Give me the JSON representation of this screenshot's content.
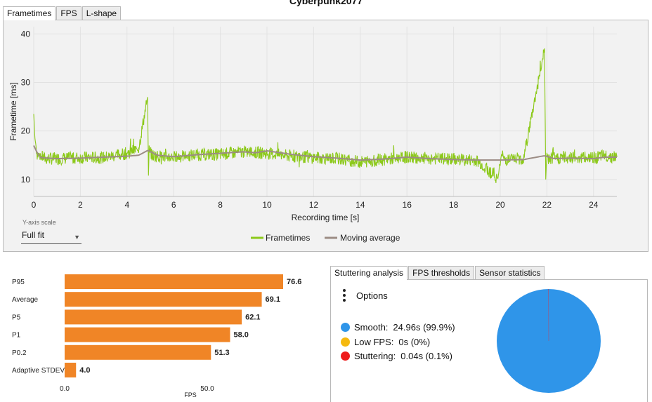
{
  "window": {
    "title": "Cyberpunk2077"
  },
  "top_tabs": [
    {
      "label": "Frametimes",
      "active": true
    },
    {
      "label": "FPS",
      "active": false
    },
    {
      "label": "L-shape",
      "active": false
    }
  ],
  "y_axis_scale": {
    "label": "Y-axis scale",
    "value": "Full fit"
  },
  "colors": {
    "frametimes": "#8cc91a",
    "moving_average": "#9c8c84",
    "bars": "#f08526",
    "smooth": "#2f95e9",
    "low_fps": "#f5b90f",
    "stuttering": "#ee1c1c",
    "panel_bg": "#f2f2f2",
    "grid": "#e2e2e2"
  },
  "chart_data": [
    {
      "type": "line",
      "xlabel": "Recording time [s]",
      "ylabel": "Frametime [ms]",
      "xlim": [
        0,
        25
      ],
      "ylim": [
        6.5,
        41.5
      ],
      "x_ticks": [
        "0",
        "2",
        "4",
        "6",
        "8",
        "10",
        "12",
        "14",
        "16",
        "18",
        "20",
        "22",
        "24"
      ],
      "y_ticks": [
        "10",
        "20",
        "30",
        "40"
      ],
      "grid": true,
      "legend_position": "bottom-center",
      "series": [
        {
          "name": "Frametimes",
          "x": [
            0,
            0.05,
            0.15,
            0.5,
            1,
            2,
            3,
            4,
            4.5,
            4.88,
            4.92,
            4.95,
            4.98,
            5.1,
            6,
            7,
            8,
            9,
            10,
            11,
            12,
            13,
            14,
            15,
            16,
            17,
            18,
            19,
            19.9,
            20.05,
            20.2,
            21,
            21.9,
            21.95,
            22.0,
            22.05,
            22.15,
            23,
            24,
            24.5,
            25
          ],
          "y": [
            23.5,
            18.5,
            15.2,
            14.3,
            14.3,
            14.5,
            14.5,
            15.4,
            16.4,
            27.0,
            10.8,
            17.0,
            15.6,
            14.9,
            14.6,
            15.1,
            15.2,
            15.7,
            15.4,
            14.8,
            14.5,
            14.3,
            13.6,
            14.1,
            14.6,
            14.3,
            14.2,
            13.9,
            10.2,
            15.1,
            14.1,
            14.3,
            37.0,
            10.0,
            15.5,
            14.1,
            14.3,
            14.6,
            14.4,
            14.9,
            14.6
          ]
        },
        {
          "name": "Moving average",
          "x": [
            0,
            0.15,
            0.3,
            1,
            2,
            3,
            4,
            4.5,
            4.9,
            5.3,
            6,
            7,
            8,
            9,
            9.5,
            10,
            11,
            12,
            13,
            14,
            15,
            16,
            17,
            18,
            19,
            20,
            21,
            21.9,
            22.3,
            23,
            24,
            24.5,
            25
          ],
          "y": [
            17.0,
            15.5,
            14.5,
            14.3,
            14.4,
            14.6,
            14.8,
            15.0,
            16.0,
            15.0,
            14.7,
            15.1,
            15.4,
            15.7,
            15.5,
            15.9,
            15.2,
            14.7,
            14.4,
            14.0,
            14.2,
            14.6,
            14.3,
            14.1,
            14.0,
            14.0,
            14.1,
            14.9,
            14.3,
            14.4,
            14.3,
            14.6,
            14.6
          ]
        }
      ]
    },
    {
      "type": "bar",
      "orientation": "horizontal",
      "xlabel": "FPS",
      "x_ticks": [
        "0.0",
        "50.0"
      ],
      "xlim": [
        0,
        76.6
      ],
      "categories": [
        "P95",
        "Average",
        "P5",
        "P1",
        "P0.2",
        "Adaptive STDEV"
      ],
      "values": [
        76.6,
        69.1,
        62.1,
        58.0,
        51.3,
        4.0
      ],
      "value_labels": [
        "76.6",
        "69.1",
        "62.1",
        "58.0",
        "51.3",
        "4.0"
      ]
    },
    {
      "type": "pie",
      "categories": [
        "Smooth",
        "Low FPS",
        "Stuttering"
      ],
      "values": [
        99.9,
        0,
        0.1
      ]
    }
  ],
  "bottom_tabs": [
    {
      "label": "Stuttering analysis",
      "active": true
    },
    {
      "label": "FPS thresholds",
      "active": false
    },
    {
      "label": "Sensor statistics",
      "active": false
    }
  ],
  "stutter": {
    "options_label": "Options",
    "legend": [
      {
        "label": "Smooth:",
        "value": "24.96s (99.9%)"
      },
      {
        "label": "Low FPS:",
        "value": "0s (0%)"
      },
      {
        "label": "Stuttering:",
        "value": "0.04s (0.1%)"
      }
    ]
  }
}
